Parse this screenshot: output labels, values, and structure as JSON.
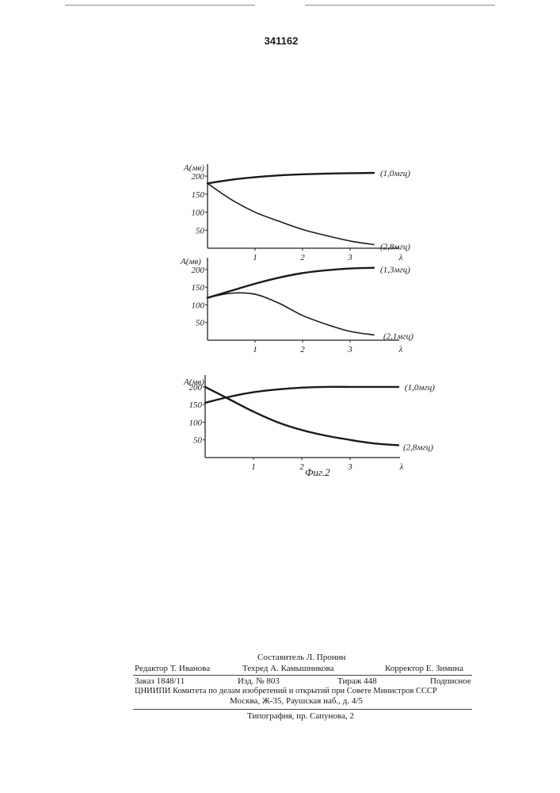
{
  "page": {
    "number": "341162"
  },
  "chart_data": [
    {
      "type": "line",
      "ylabel": "A(мв)",
      "xlabel": "λ",
      "y_ticks": [
        "200",
        "150",
        "100",
        "50"
      ],
      "x_ticks": [
        "1",
        "2",
        "3"
      ],
      "xlim": [
        0,
        4.0
      ],
      "ylim": [
        0,
        220
      ],
      "series": [
        {
          "name": "(1,0мгц)",
          "x": [
            0,
            0.5,
            1,
            1.5,
            2,
            2.5,
            3,
            3.5
          ],
          "y": [
            180,
            190,
            197,
            202,
            205,
            207,
            208,
            209
          ],
          "weight": "thick"
        },
        {
          "name": "(2,8мгц)",
          "x": [
            0,
            0.5,
            1,
            1.5,
            2,
            2.5,
            3,
            3.5
          ],
          "y": [
            180,
            135,
            100,
            75,
            52,
            35,
            20,
            10
          ],
          "weight": "thin"
        }
      ]
    },
    {
      "type": "line",
      "ylabel": "A(мв)",
      "xlabel": "λ",
      "y_ticks": [
        "200",
        "150",
        "100",
        "50"
      ],
      "x_ticks": [
        "1",
        "2",
        "3"
      ],
      "xlim": [
        0,
        4.0
      ],
      "ylim": [
        0,
        220
      ],
      "series": [
        {
          "name": "(1,3мгц)",
          "x": [
            0,
            0.5,
            1,
            1.5,
            2,
            2.5,
            3,
            3.5
          ],
          "y": [
            120,
            140,
            160,
            177,
            190,
            198,
            203,
            205
          ],
          "weight": "thick"
        },
        {
          "name": "(2,1мгц)",
          "x": [
            0,
            0.5,
            1,
            1.5,
            2,
            2.5,
            3,
            3.5
          ],
          "y": [
            120,
            133,
            130,
            105,
            70,
            45,
            25,
            15
          ],
          "weight": "thin"
        }
      ]
    },
    {
      "type": "line",
      "ylabel": "A(мв)",
      "xlabel": "λ",
      "y_ticks": [
        "200",
        "150",
        "100",
        "50"
      ],
      "x_ticks": [
        "1",
        "2",
        "3"
      ],
      "xlim": [
        0,
        4.0
      ],
      "ylim": [
        0,
        220
      ],
      "series": [
        {
          "name": "(1,0мгц)",
          "x": [
            0,
            0.5,
            1,
            1.5,
            2,
            2.5,
            3,
            3.5,
            4.0
          ],
          "y": [
            155,
            172,
            185,
            193,
            198,
            200,
            200,
            200,
            200
          ],
          "weight": "thick"
        },
        {
          "name": "(2,8мгц)",
          "x": [
            0,
            0.5,
            1,
            1.5,
            2,
            2.5,
            3,
            3.5,
            4.0
          ],
          "y": [
            200,
            165,
            130,
            100,
            78,
            62,
            50,
            40,
            35
          ],
          "weight": "thick"
        }
      ]
    }
  ],
  "figure_caption": "Фиг.2",
  "footer": {
    "compiler": "Составитель Л. Пронин",
    "editor": "Редактор Т. Иванова",
    "techred": "Техред А. Камышникова",
    "corrector": "Корректор Е. Зимина",
    "order": "Заказ 1848/11",
    "izd": "Изд. № 803",
    "tirazh": "Тираж 448",
    "podpisnoe": "Подписное",
    "org_line1": "ЦНИИПИ Комитета по делам изобретений и открытий при Совете Министров СССР",
    "org_line2": "Москва, Ж-35, Раушская наб., д. 4/5",
    "printer": "Типография, пр. Сапунова, 2"
  }
}
